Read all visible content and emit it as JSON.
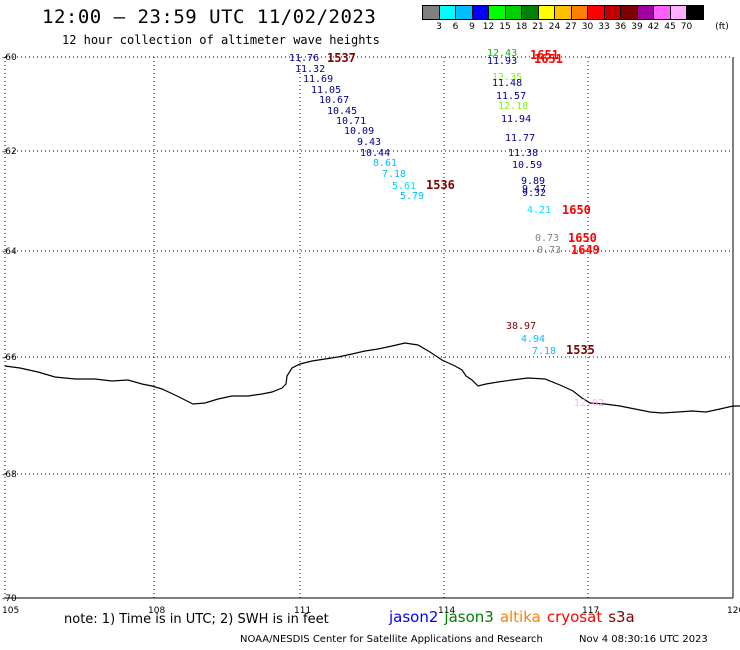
{
  "header": {
    "title": "12:00 – 23:59 UTC 11/02/2023",
    "subtitle": "12 hour collection of altimeter wave heights"
  },
  "colorbar": {
    "unit": "(ft)",
    "colors": [
      "#808080",
      "#00ffff",
      "#00bfff",
      "#0000ff",
      "#00ff00",
      "#00d000",
      "#008000",
      "#ffff00",
      "#ffc000",
      "#ff8000",
      "#ff0000",
      "#c00000",
      "#800000",
      "#a000a0",
      "#ff60ff",
      "#ffb0ff",
      "#000000"
    ],
    "labels": [
      "3",
      "6",
      "9",
      "12",
      "15",
      "18",
      "21",
      "24",
      "27",
      "30",
      "33",
      "36",
      "39",
      "42",
      "45",
      "70"
    ]
  },
  "map": {
    "lat_labels": [
      "-60",
      "-62",
      "-64",
      "-66",
      "-68",
      "-70"
    ],
    "lon_labels": [
      "105",
      "108",
      "111",
      "114",
      "117",
      "120"
    ]
  },
  "observations": [
    {
      "text": "11.76",
      "color": "#00008b"
    },
    {
      "text": "11.32",
      "color": "#00008b"
    },
    {
      "text": "11.69",
      "color": "#00008b"
    },
    {
      "text": "11.05",
      "color": "#00008b"
    },
    {
      "text": "10.67",
      "color": "#00008b"
    },
    {
      "text": "10.45",
      "color": "#00008b"
    },
    {
      "text": "10.71",
      "color": "#00008b"
    },
    {
      "text": "10.09",
      "color": "#00008b"
    },
    {
      "text": "9.43",
      "color": "#00008b"
    },
    {
      "text": "10.44",
      "color": "#00008b"
    },
    {
      "text": "8.61",
      "color": "#00bfff"
    },
    {
      "text": "7.18",
      "color": "#00bfff"
    },
    {
      "text": "5.61",
      "color": "#00dfff"
    },
    {
      "text": "5.79",
      "color": "#00bfff"
    },
    {
      "text": "12.43",
      "color": "#00c000"
    },
    {
      "text": "11.93",
      "color": "#00008b"
    },
    {
      "text": "12.35",
      "color": "#7cfc00"
    },
    {
      "text": "11.48",
      "color": "#00008b"
    },
    {
      "text": "11.57",
      "color": "#00008b"
    },
    {
      "text": "12.18",
      "color": "#7cfc00"
    },
    {
      "text": "11.94",
      "color": "#00008b"
    },
    {
      "text": "11.77",
      "color": "#00008b"
    },
    {
      "text": "11.38",
      "color": "#00008b"
    },
    {
      "text": "10.59",
      "color": "#00008b"
    },
    {
      "text": "9.89",
      "color": "#00008b"
    },
    {
      "text": "9.47",
      "color": "#00008b"
    },
    {
      "text": "9.32",
      "color": "#00008b"
    },
    {
      "text": "4.21",
      "color": "#00dfff"
    },
    {
      "text": "0.73",
      "color": "#808080"
    },
    {
      "text": "0.73",
      "color": "#808080"
    },
    {
      "text": "38.97",
      "color": "#800000"
    },
    {
      "text": "4.94",
      "color": "#00bfff"
    },
    {
      "text": "7.18",
      "color": "#00bfff"
    },
    {
      "text": "12.02",
      "color": "#ffb0ff"
    }
  ],
  "time_labels": [
    {
      "text": "1537",
      "color": "#800000"
    },
    {
      "text": "1651",
      "color": "#ff0000"
    },
    {
      "text": "1651",
      "color": "#ff0000"
    },
    {
      "text": "1536",
      "color": "#800000"
    },
    {
      "text": "1650",
      "color": "#ff0000"
    },
    {
      "text": "1650",
      "color": "#ff0000"
    },
    {
      "text": "1649",
      "color": "#ff0000"
    },
    {
      "text": "1535",
      "color": "#800000"
    }
  ],
  "footer": {
    "note": "note: 1) Time is in UTC; 2) SWH is in feet",
    "legend": [
      {
        "name": "jason2",
        "color": "#0000ff"
      },
      {
        "name": "jason3",
        "color": "#008000"
      },
      {
        "name": "altika",
        "color": "#ff8000"
      },
      {
        "name": "cryosat",
        "color": "#ff0000"
      },
      {
        "name": "s3a",
        "color": "#800000"
      }
    ],
    "credit": "NOAA/NESDIS Center for Satellite Applications and Research",
    "timestamp": "Nov  4 08:30:16 UTC 2023"
  }
}
